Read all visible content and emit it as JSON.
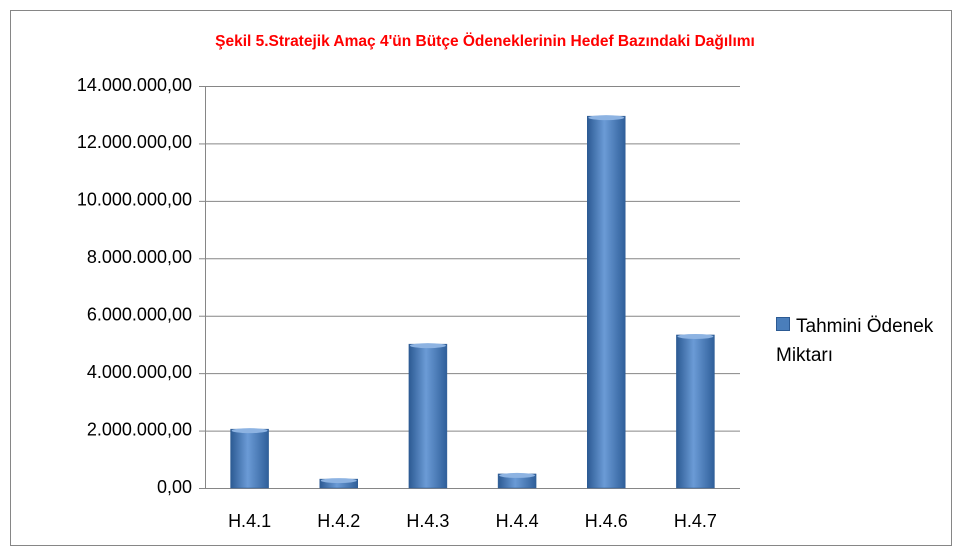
{
  "chart_data": {
    "type": "bar",
    "title": "Şekil 5.Stratejik Amaç 4'ün Bütçe Ödeneklerinin Hedef Bazındaki Dağılımı",
    "categories": [
      "H.4.1",
      "H.4.2",
      "H.4.3",
      "H.4.4",
      "H.4.6",
      "H.4.7"
    ],
    "series": [
      {
        "name": "Tahmini Ödenek Miktarı",
        "color": "#4a7ebb",
        "values": [
          2050000,
          310000,
          5010000,
          490000,
          12950000,
          5330000
        ]
      }
    ],
    "ylim": [
      0,
      14000000
    ],
    "yticks": [
      {
        "value": 0,
        "label": "0,00"
      },
      {
        "value": 2000000,
        "label": "2.000.000,00"
      },
      {
        "value": 4000000,
        "label": "4.000.000,00"
      },
      {
        "value": 6000000,
        "label": "6.000.000,00"
      },
      {
        "value": 8000000,
        "label": "8.000.000,00"
      },
      {
        "value": 10000000,
        "label": "10.000.000,00"
      },
      {
        "value": 12000000,
        "label": "12.000.000,00"
      },
      {
        "value": 14000000,
        "label": "14.000.000,00"
      }
    ],
    "grid": true,
    "legend": "right"
  }
}
